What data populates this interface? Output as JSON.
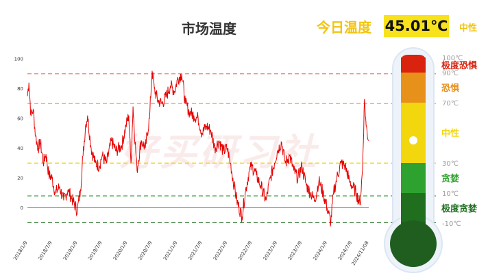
{
  "chart_data": {
    "type": "line",
    "title": "市场温度",
    "today": {
      "label": "今日温度",
      "value": "45.01℃",
      "state": "中性"
    },
    "watermark": "好买研习社",
    "ylim": [
      -10,
      100
    ],
    "yticks": [
      0,
      20,
      40,
      60,
      80,
      100
    ],
    "x_ticks": [
      "2018/1/9",
      "2018/7/9",
      "2019/1/9",
      "2019/7/9",
      "2020/1/9",
      "2020/7/9",
      "2021/1/9",
      "2021/7/9",
      "2022/1/9",
      "2022/7/9",
      "2023/1/9",
      "2023/7/9",
      "2024/1/9",
      "2024/7/9",
      "2024/11/08"
    ],
    "line_color": "#e60000",
    "reference_lines": [
      {
        "value": 90,
        "color": "#f08070"
      },
      {
        "value": 70,
        "color": "#f0a850"
      },
      {
        "value": 30,
        "color": "#f0d000"
      },
      {
        "value": 8,
        "color": "#2a9a2a"
      },
      {
        "value": -10,
        "color": "#1a6a1a"
      }
    ],
    "anchors": [
      [
        "2018/1/9",
        75
      ],
      [
        "2018/1/20",
        84
      ],
      [
        "2018/2/5",
        62
      ],
      [
        "2018/2/20",
        66
      ],
      [
        "2018/3/10",
        48
      ],
      [
        "2018/3/28",
        40
      ],
      [
        "2018/4/15",
        44
      ],
      [
        "2018/5/5",
        30
      ],
      [
        "2018/5/25",
        36
      ],
      [
        "2018/6/15",
        22
      ],
      [
        "2018/7/9",
        20
      ],
      [
        "2018/8/1",
        10
      ],
      [
        "2018/9/1",
        14
      ],
      [
        "2018/10/1",
        5
      ],
      [
        "2018/11/1",
        12
      ],
      [
        "2018/12/1",
        6
      ],
      [
        "2019/1/9",
        -2
      ],
      [
        "2019/2/1",
        12
      ],
      [
        "2019/2/20",
        35
      ],
      [
        "2019/3/10",
        55
      ],
      [
        "2019/3/25",
        62
      ],
      [
        "2019/4/20",
        40
      ],
      [
        "2019/5/20",
        30
      ],
      [
        "2019/6/20",
        28
      ],
      [
        "2019/7/9",
        35
      ],
      [
        "2019/8/10",
        30
      ],
      [
        "2019/9/15",
        45
      ],
      [
        "2019/10/20",
        38
      ],
      [
        "2019/11/30",
        42
      ],
      [
        "2019/12/31",
        55
      ],
      [
        "2020/1/20",
        62
      ],
      [
        "2020/2/5",
        30
      ],
      [
        "2020/2/20",
        68
      ],
      [
        "2020/3/20",
        25
      ],
      [
        "2020/4/20",
        45
      ],
      [
        "2020/5/20",
        40
      ],
      [
        "2020/6/20",
        60
      ],
      [
        "2020/7/9",
        92
      ],
      [
        "2020/7/25",
        80
      ],
      [
        "2020/8/20",
        72
      ],
      [
        "2020/9/20",
        70
      ],
      [
        "2020/10/20",
        75
      ],
      [
        "2020/11/20",
        82
      ],
      [
        "2020/12/20",
        78
      ],
      [
        "2021/1/9",
        86
      ],
      [
        "2021/2/10",
        90
      ],
      [
        "2021/3/10",
        70
      ],
      [
        "2021/4/10",
        64
      ],
      [
        "2021/5/10",
        62
      ],
      [
        "2021/6/10",
        60
      ],
      [
        "2021/7/9",
        50
      ],
      [
        "2021/8/10",
        55
      ],
      [
        "2021/9/10",
        52
      ],
      [
        "2021/10/10",
        40
      ],
      [
        "2021/11/10",
        45
      ],
      [
        "2021/12/10",
        38
      ],
      [
        "2022/1/9",
        40
      ],
      [
        "2022/2/1",
        30
      ],
      [
        "2022/3/1",
        15
      ],
      [
        "2022/3/20",
        5
      ],
      [
        "2022/4/27",
        -6
      ],
      [
        "2022/5/20",
        10
      ],
      [
        "2022/6/20",
        25
      ],
      [
        "2022/7/9",
        28
      ],
      [
        "2022/8/10",
        22
      ],
      [
        "2022/9/10",
        15
      ],
      [
        "2022/10/20",
        5
      ],
      [
        "2022/11/20",
        20
      ],
      [
        "2022/12/20",
        30
      ],
      [
        "2023/1/9",
        38
      ],
      [
        "2023/2/10",
        44
      ],
      [
        "2023/3/10",
        30
      ],
      [
        "2023/4/10",
        35
      ],
      [
        "2023/5/10",
        25
      ],
      [
        "2023/6/10",
        20
      ],
      [
        "2023/7/9",
        28
      ],
      [
        "2023/8/10",
        15
      ],
      [
        "2023/9/10",
        10
      ],
      [
        "2023/10/10",
        5
      ],
      [
        "2023/11/10",
        18
      ],
      [
        "2023/12/10",
        10
      ],
      [
        "2024/1/9",
        0
      ],
      [
        "2024/2/5",
        -10
      ],
      [
        "2024/2/25",
        10
      ],
      [
        "2024/3/20",
        20
      ],
      [
        "2024/4/20",
        30
      ],
      [
        "2024/5/20",
        28
      ],
      [
        "2024/6/20",
        18
      ],
      [
        "2024/7/9",
        15
      ],
      [
        "2024/8/10",
        10
      ],
      [
        "2024/9/5",
        2
      ],
      [
        "2024/9/24",
        25
      ],
      [
        "2024/10/8",
        73
      ],
      [
        "2024/10/20",
        55
      ],
      [
        "2024/11/08",
        45
      ]
    ],
    "thermometer": {
      "scale": [
        {
          "label": "100℃",
          "value": 100
        },
        {
          "label": "90℃",
          "value": 90
        },
        {
          "label": "70℃",
          "value": 70
        },
        {
          "label": "30℃",
          "value": 30
        },
        {
          "label": "10℃",
          "value": 10
        },
        {
          "label": "-10℃",
          "value": -10
        }
      ],
      "zones": [
        {
          "name": "极度恐惧",
          "from": 90,
          "to": 100,
          "color": "#d9230f"
        },
        {
          "name": "恐惧",
          "from": 70,
          "to": 90,
          "color": "#e8911a"
        },
        {
          "name": "中性",
          "from": 30,
          "to": 70,
          "color": "#f2d70f"
        },
        {
          "name": "贪婪",
          "from": 10,
          "to": 30,
          "color": "#2ea22e"
        },
        {
          "name": "极度贪婪",
          "from": -10,
          "to": 10,
          "color": "#1f6f1f"
        }
      ],
      "marker_value": 45.01
    }
  }
}
